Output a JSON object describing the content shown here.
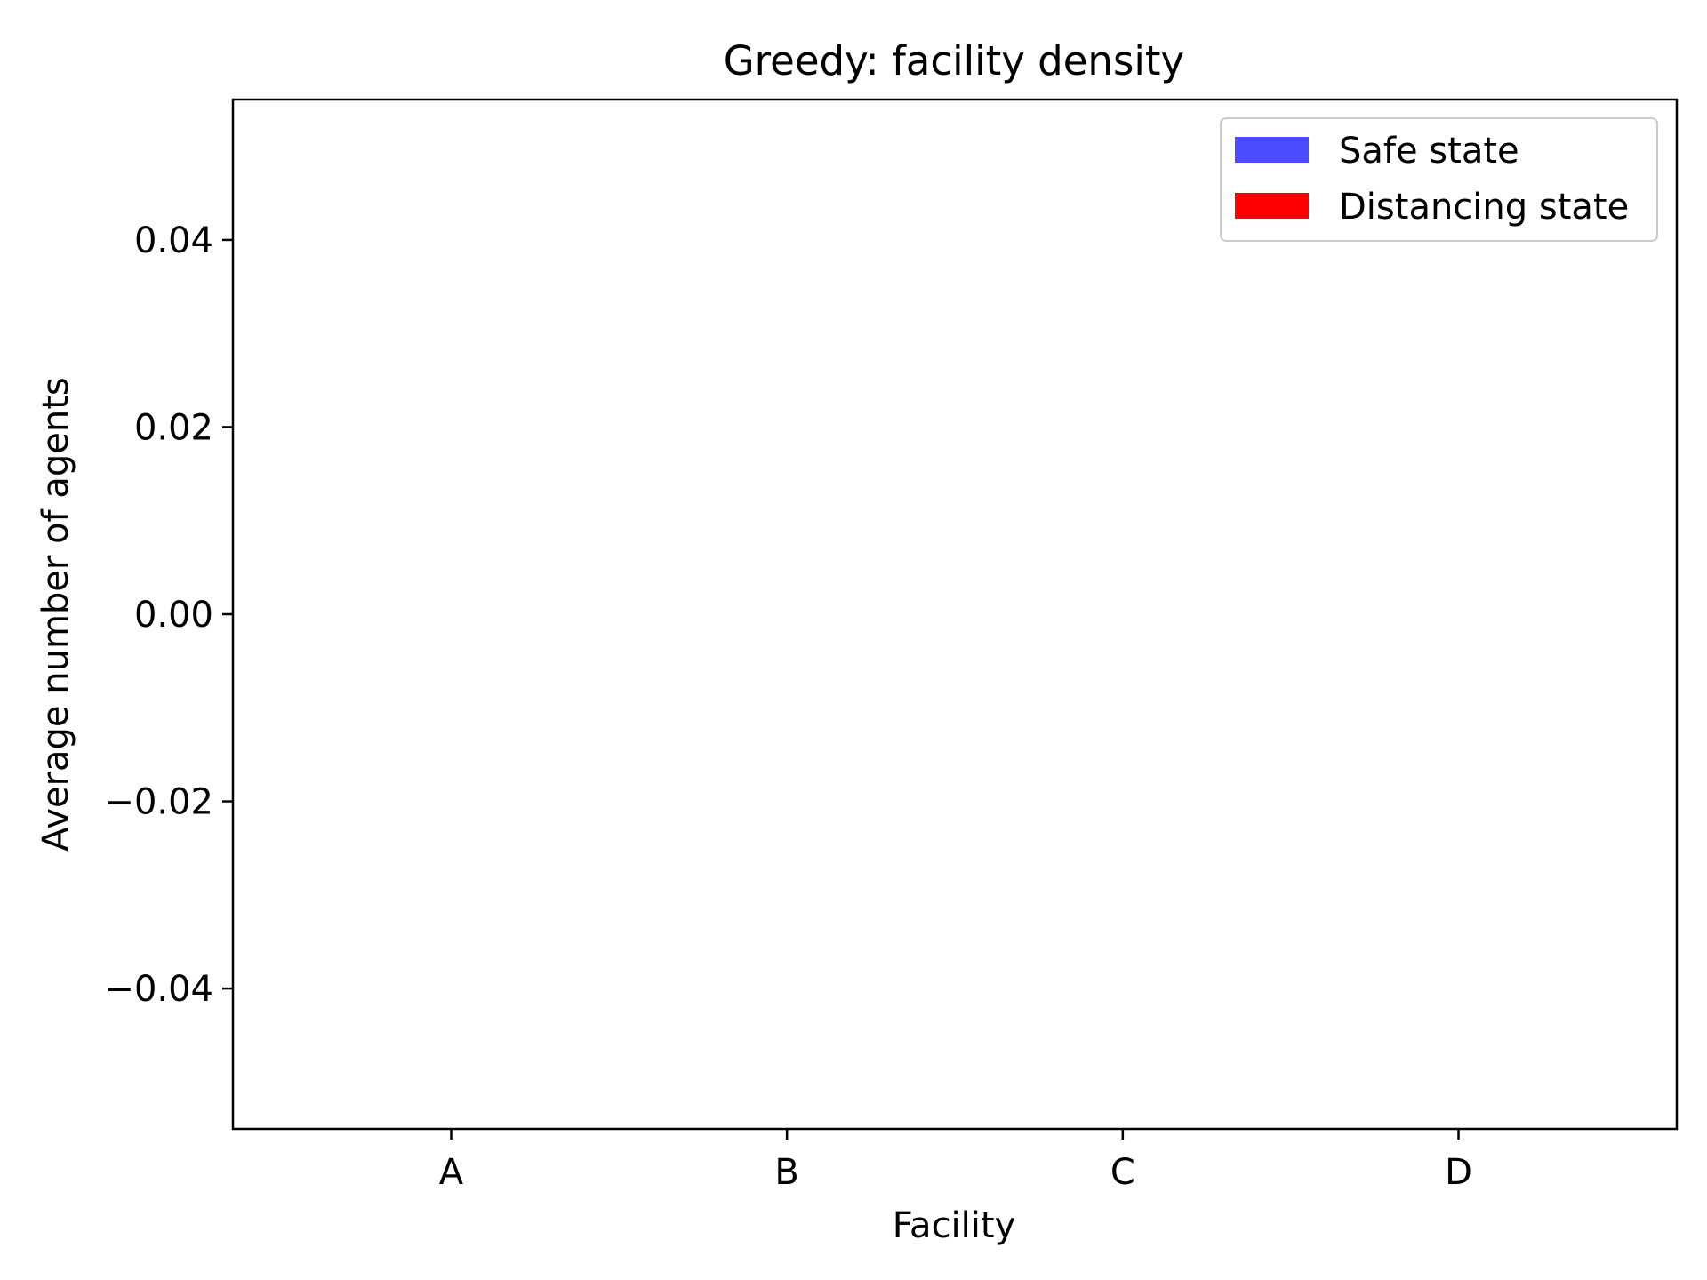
{
  "chart_data": {
    "type": "bar",
    "title": "Greedy: facility density",
    "xlabel": "Facility",
    "ylabel": "Average number of agents",
    "categories": [
      "A",
      "B",
      "C",
      "D"
    ],
    "series": [
      {
        "name": "Safe state",
        "color": "#4b4bff",
        "values": [
          0,
          0,
          0,
          0
        ]
      },
      {
        "name": "Distancing state",
        "color": "#ff0000",
        "values": [
          0,
          0,
          0,
          0
        ]
      }
    ],
    "ylim": [
      -0.055,
      0.055
    ],
    "yticks": [
      -0.04,
      -0.02,
      0.0,
      0.02,
      0.04
    ],
    "ytick_labels": [
      "−0.04",
      "−0.02",
      "0.00",
      "0.02",
      "0.04"
    ],
    "grid": false,
    "legend_position": "top-right"
  }
}
